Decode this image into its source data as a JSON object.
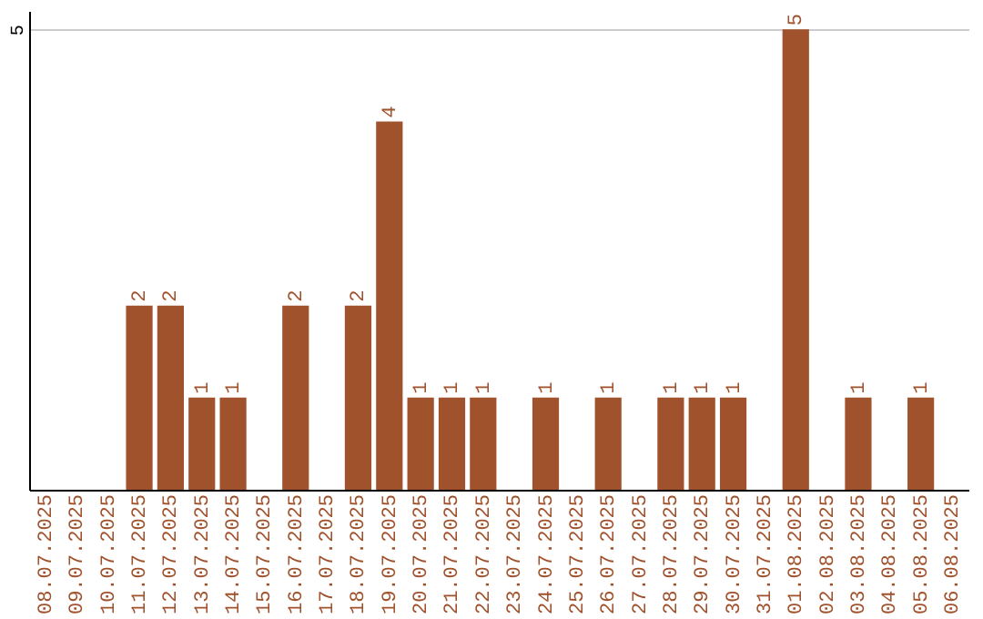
{
  "chart_data": {
    "type": "bar",
    "categories": [
      "08.07.2025",
      "09.07.2025",
      "10.07.2025",
      "11.07.2025",
      "12.07.2025",
      "13.07.2025",
      "14.07.2025",
      "15.07.2025",
      "16.07.2025",
      "17.07.2025",
      "18.07.2025",
      "19.07.2025",
      "20.07.2025",
      "21.07.2025",
      "22.07.2025",
      "23.07.2025",
      "24.07.2025",
      "25.07.2025",
      "26.07.2025",
      "27.07.2025",
      "28.07.2025",
      "29.07.2025",
      "30.07.2025",
      "31.07.2025",
      "01.08.2025",
      "02.08.2025",
      "03.08.2025",
      "04.08.2025",
      "05.08.2025",
      "06.08.2025"
    ],
    "values": [
      0,
      0,
      0,
      2,
      2,
      1,
      1,
      0,
      2,
      0,
      2,
      4,
      1,
      1,
      1,
      0,
      1,
      0,
      1,
      0,
      1,
      1,
      1,
      0,
      5,
      0,
      1,
      0,
      1,
      0
    ],
    "value_labels": [
      null,
      null,
      null,
      "2",
      "2",
      "1",
      "1",
      null,
      "2",
      null,
      "2",
      "4",
      "1",
      "1",
      "1",
      null,
      "1",
      null,
      "1",
      null,
      "1",
      "1",
      "1",
      null,
      "5",
      null,
      "1",
      null,
      "1",
      null
    ],
    "color": "#a0522d",
    "ylim": [
      0,
      5.2
    ],
    "yticks": [
      5
    ],
    "grid": "y"
  }
}
